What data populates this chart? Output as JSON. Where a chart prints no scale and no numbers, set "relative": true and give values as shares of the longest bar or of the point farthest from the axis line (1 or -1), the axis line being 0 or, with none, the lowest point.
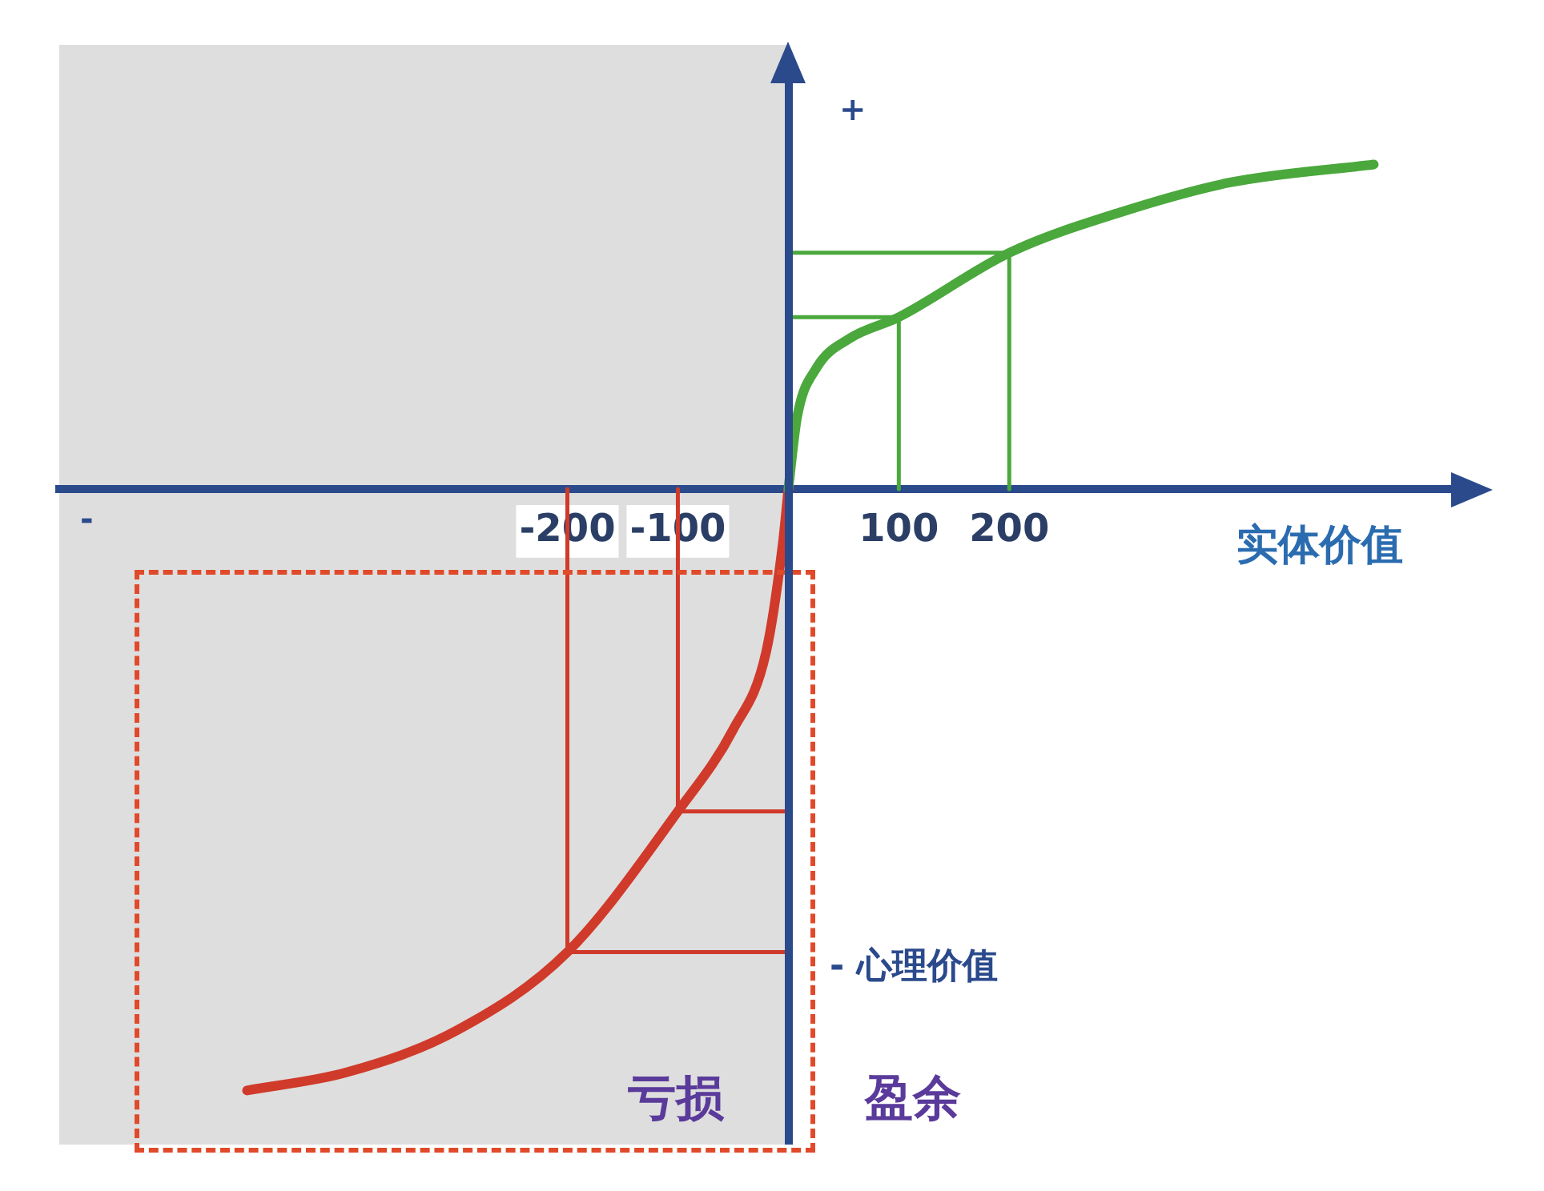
{
  "chart_data": {
    "type": "line",
    "xlabel": "实体价值",
    "ylabel": "- 心理价值",
    "relative": true,
    "xlim": [
      -660,
      600
    ],
    "xticks": [
      -200,
      -100,
      100,
      200
    ],
    "series": [
      {
        "color": "#4aa83c",
        "x": [
          0,
          8,
          25,
          55,
          100,
          200,
          300,
          400,
          530
        ],
        "values": [
          0,
          0.12,
          0.2,
          0.25,
          0.286,
          0.393,
          0.46,
          0.51,
          0.54
        ]
      },
      {
        "color": "#d03a2a",
        "x": [
          -490,
          -400,
          -300,
          -200,
          -100,
          -50,
          -20,
          -5,
          0
        ],
        "values": [
          -1,
          -0.97,
          -0.9,
          -0.77,
          -0.536,
          -0.4,
          -0.27,
          -0.09,
          0
        ]
      },
      {
        "color": "#4aa83c",
        "x": [
          100,
          100,
          0
        ],
        "values": [
          0,
          0.286,
          0.286
        ]
      },
      {
        "color": "#4aa83c",
        "x": [
          200,
          200,
          0
        ],
        "values": [
          0,
          0.393,
          0.393
        ]
      },
      {
        "color": "#d03a2a",
        "x": [
          -100,
          -100,
          0
        ],
        "values": [
          0,
          -0.536,
          -0.536
        ]
      },
      {
        "color": "#d03a2a",
        "x": [
          -200,
          -200,
          0
        ],
        "values": [
          0,
          -0.77,
          -0.77
        ]
      }
    ],
    "bands": [
      {
        "axis": "x",
        "from": -660,
        "to": 0,
        "color": "#dedede"
      }
    ],
    "annotations": [
      "+",
      "-",
      "亏损",
      "盈余"
    ],
    "legend": false,
    "marker": "none",
    "line_style": "solid"
  }
}
